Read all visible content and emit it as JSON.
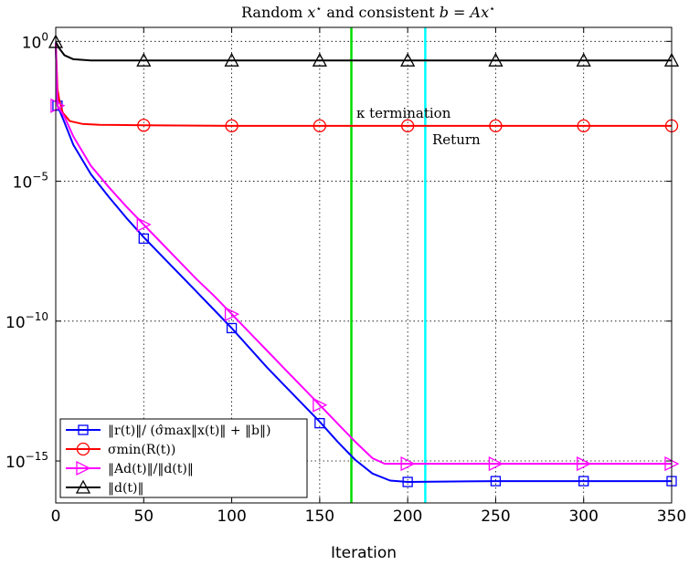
{
  "chart_data": {
    "type": "line",
    "title": "Random x⋆ and consistent b = Ax⋆",
    "xlabel": "Iteration",
    "ylabel": "",
    "xlim": [
      0,
      350
    ],
    "ylim_exp": [
      -16.5,
      0.5
    ],
    "yscale": "log",
    "grid": true,
    "legend_position": "bottom-left",
    "x_ticks": [
      0,
      50,
      100,
      150,
      200,
      250,
      300,
      350
    ],
    "x_tick_labels": [
      "0",
      "50",
      "100",
      "150",
      "200",
      "250",
      "300",
      "350"
    ],
    "y_ticks": [
      {
        "exp": 0,
        "base": "10",
        "sup": "0"
      },
      {
        "exp": -5,
        "base": "10",
        "sup": "−5"
      },
      {
        "exp": -10,
        "base": "10",
        "sup": "−10"
      },
      {
        "exp": -15,
        "base": "10",
        "sup": "−15"
      }
    ],
    "series": [
      {
        "name": "‖r(t)‖/ (σ̂max‖x(t)‖ + ‖b‖)",
        "color": "#0000ff",
        "marker": "square",
        "curve_log10": [
          [
            0,
            -0.1
          ],
          [
            1,
            -2.3
          ],
          [
            2,
            -2.45
          ],
          [
            5,
            -2.9
          ],
          [
            10,
            -3.7
          ],
          [
            20,
            -4.75
          ],
          [
            30,
            -5.55
          ],
          [
            40,
            -6.3
          ],
          [
            50,
            -7.0
          ],
          [
            60,
            -7.65
          ],
          [
            70,
            -8.3
          ],
          [
            80,
            -8.95
          ],
          [
            90,
            -9.6
          ],
          [
            100,
            -10.25
          ],
          [
            110,
            -10.95
          ],
          [
            120,
            -11.65
          ],
          [
            130,
            -12.3
          ],
          [
            140,
            -12.95
          ],
          [
            150,
            -13.6
          ],
          [
            160,
            -14.3
          ],
          [
            170,
            -14.95
          ],
          [
            180,
            -15.45
          ],
          [
            190,
            -15.7
          ],
          [
            200,
            -15.75
          ],
          [
            250,
            -15.72
          ],
          [
            300,
            -15.72
          ],
          [
            350,
            -15.72
          ]
        ],
        "markers": [
          [
            1,
            -2.3
          ],
          [
            50,
            -7.05
          ],
          [
            100,
            -10.25
          ],
          [
            150,
            -13.65
          ],
          [
            200,
            -15.75
          ],
          [
            250,
            -15.72
          ],
          [
            300,
            -15.72
          ],
          [
            350,
            -15.72
          ]
        ]
      },
      {
        "name": "σmin(R(t))",
        "color": "#ff0000",
        "marker": "circle",
        "curve_log10": [
          [
            0,
            -0.05
          ],
          [
            1,
            -1.7
          ],
          [
            2,
            -2.1
          ],
          [
            4,
            -2.55
          ],
          [
            8,
            -2.85
          ],
          [
            15,
            -2.95
          ],
          [
            25,
            -2.98
          ],
          [
            50,
            -3.0
          ],
          [
            100,
            -3.02
          ],
          [
            200,
            -3.02
          ],
          [
            350,
            -3.02
          ]
        ],
        "markers": [
          [
            50,
            -3.0
          ],
          [
            100,
            -3.02
          ],
          [
            150,
            -3.02
          ],
          [
            200,
            -3.02
          ],
          [
            250,
            -3.02
          ],
          [
            300,
            -3.02
          ],
          [
            350,
            -3.02
          ]
        ]
      },
      {
        "name": "‖Ad(t)‖/‖d(t)‖",
        "color": "#ff00ff",
        "marker": "triangle-right",
        "curve_log10": [
          [
            0,
            -0.05
          ],
          [
            1,
            -2.3
          ],
          [
            2,
            -2.4
          ],
          [
            5,
            -2.7
          ],
          [
            10,
            -3.4
          ],
          [
            20,
            -4.45
          ],
          [
            30,
            -5.2
          ],
          [
            40,
            -5.9
          ],
          [
            50,
            -6.55
          ],
          [
            60,
            -7.2
          ],
          [
            70,
            -7.85
          ],
          [
            80,
            -8.5
          ],
          [
            90,
            -9.1
          ],
          [
            100,
            -9.75
          ],
          [
            110,
            -10.4
          ],
          [
            120,
            -11.05
          ],
          [
            130,
            -11.7
          ],
          [
            140,
            -12.35
          ],
          [
            150,
            -13.0
          ],
          [
            160,
            -13.65
          ],
          [
            170,
            -14.3
          ],
          [
            180,
            -14.9
          ],
          [
            187,
            -15.1
          ],
          [
            200,
            -15.1
          ],
          [
            350,
            -15.1
          ]
        ],
        "markers": [
          [
            1,
            -2.3
          ],
          [
            50,
            -6.55
          ],
          [
            100,
            -9.75
          ],
          [
            150,
            -13.0
          ],
          [
            200,
            -15.1
          ],
          [
            250,
            -15.1
          ],
          [
            300,
            -15.1
          ],
          [
            350,
            -15.1
          ]
        ]
      },
      {
        "name": "‖d(t)‖",
        "color": "#000000",
        "marker": "triangle-up",
        "curve_log10": [
          [
            0,
            -0.02
          ],
          [
            2,
            -0.25
          ],
          [
            5,
            -0.5
          ],
          [
            10,
            -0.64
          ],
          [
            20,
            -0.68
          ],
          [
            50,
            -0.68
          ],
          [
            100,
            -0.68
          ],
          [
            350,
            -0.68
          ]
        ],
        "markers": [
          [
            0,
            -0.02
          ],
          [
            50,
            -0.68
          ],
          [
            100,
            -0.68
          ],
          [
            150,
            -0.68
          ],
          [
            200,
            -0.68
          ],
          [
            250,
            -0.68
          ],
          [
            300,
            -0.68
          ],
          [
            350,
            -0.68
          ]
        ]
      }
    ],
    "vlines": [
      {
        "x": 168,
        "color": "#00dd00",
        "label": "κ termination"
      },
      {
        "x": 210,
        "color": "#00ffff",
        "label": "Return"
      }
    ]
  }
}
